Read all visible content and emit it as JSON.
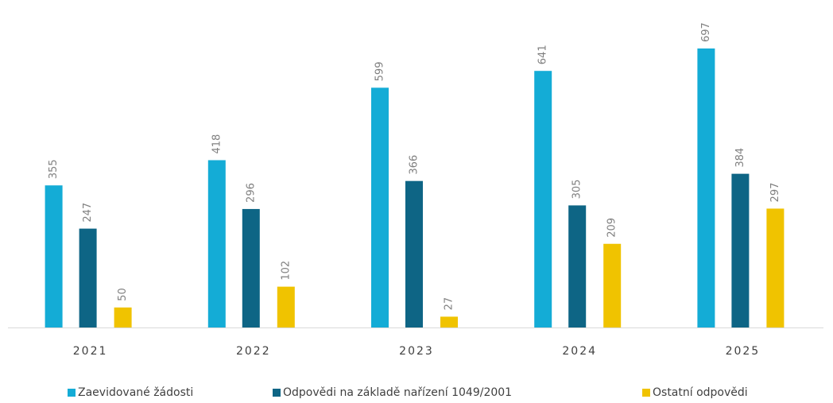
{
  "chart_data": {
    "type": "bar",
    "categories": [
      "2021",
      "2022",
      "2023",
      "2024",
      "2025"
    ],
    "series": [
      {
        "name": "Zaevidované žádosti",
        "color": "#14acd6",
        "values": [
          355,
          418,
          599,
          641,
          697
        ]
      },
      {
        "name": "Odpovědi na základě nařízení 1049/2001",
        "color": "#0e6585",
        "values": [
          247,
          296,
          366,
          305,
          384
        ]
      },
      {
        "name": "Ostatní odpovědi",
        "color": "#f0c300",
        "values": [
          50,
          102,
          27,
          209,
          297
        ]
      }
    ],
    "legend": "bottom"
  }
}
